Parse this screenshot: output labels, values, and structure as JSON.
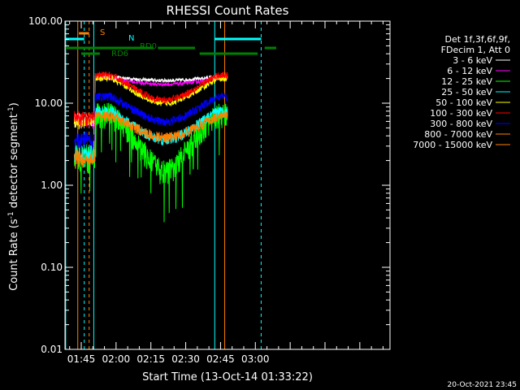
{
  "chart_data": {
    "type": "line",
    "title": "RHESSI Count Rates",
    "xlabel": "Start Time (13-Oct-14 01:33:22)",
    "ylabel_main": "Count Rate (s",
    "ylabel_sup": "-1",
    "ylabel_rest": " detector segment",
    "ylabel_sup2": "-1",
    "ylabel_end": ")",
    "yscale": "log",
    "ylim": [
      0.01,
      100
    ],
    "xlim_minutes": [
      98,
      238
    ],
    "x_ticks": [
      {
        "label": "01:45",
        "t": 105
      },
      {
        "label": "02:00",
        "t": 120
      },
      {
        "label": "02:15",
        "t": 135
      },
      {
        "label": "02:30",
        "t": 150
      },
      {
        "label": "02:45",
        "t": 165
      },
      {
        "label": "03:00",
        "t": 180
      }
    ],
    "y_ticks": [
      {
        "label": "100.00",
        "v": 100
      },
      {
        "label": "10.00",
        "v": 10
      },
      {
        "label": "1.00",
        "v": 1
      },
      {
        "label": "0.10",
        "v": 0.1
      },
      {
        "label": "0.01",
        "v": 0.01
      }
    ],
    "legend_header": [
      "Det 1f,3f,6f,9f,",
      "FDecim 1, Att 0"
    ],
    "series": [
      {
        "name": "3 - 6 keV",
        "color": "#ffffff",
        "level": 21,
        "dip": 0.1,
        "noise": 0.05
      },
      {
        "name": "6 - 12 keV",
        "color": "#ff00ff",
        "level": 20,
        "dip": 0.15,
        "noise": 0.05
      },
      {
        "name": "12 - 25 keV",
        "color": "#00ff00",
        "level": 7.5,
        "dip": 0.8,
        "noise": 0.35
      },
      {
        "name": "25 - 50 keV",
        "color": "#00ffff",
        "level": 8.0,
        "dip": 0.55,
        "noise": 0.15
      },
      {
        "name": "50 - 100 keV",
        "color": "#ffff00",
        "level": 20,
        "dip": 0.5,
        "noise": 0.08
      },
      {
        "name": "100 - 300 keV",
        "color": "#ff0000",
        "level": 22,
        "dip": 0.5,
        "noise": 0.1
      },
      {
        "name": "300 - 800 keV",
        "color": "#0000ff",
        "level": 12,
        "dip": 0.5,
        "noise": 0.12
      },
      {
        "name": "800 - 7000 keV",
        "color": "#ff8000",
        "level": 7,
        "dip": 0.45,
        "noise": 0.15
      },
      {
        "name": "7000 - 15000 keV",
        "color": "#ff8000",
        "level": 0,
        "dip": 0,
        "noise": 0
      }
    ],
    "data_window_minutes": [
      102,
      168
    ],
    "annotations": [
      {
        "label": "S",
        "color": "#ff8000"
      },
      {
        "label": "N",
        "color": "#00ffff"
      },
      {
        "label": "RD0",
        "color": "#008000"
      },
      {
        "label": "RD6",
        "color": "#008000"
      }
    ]
  },
  "footer_date": "20-Oct-2021 23:45"
}
